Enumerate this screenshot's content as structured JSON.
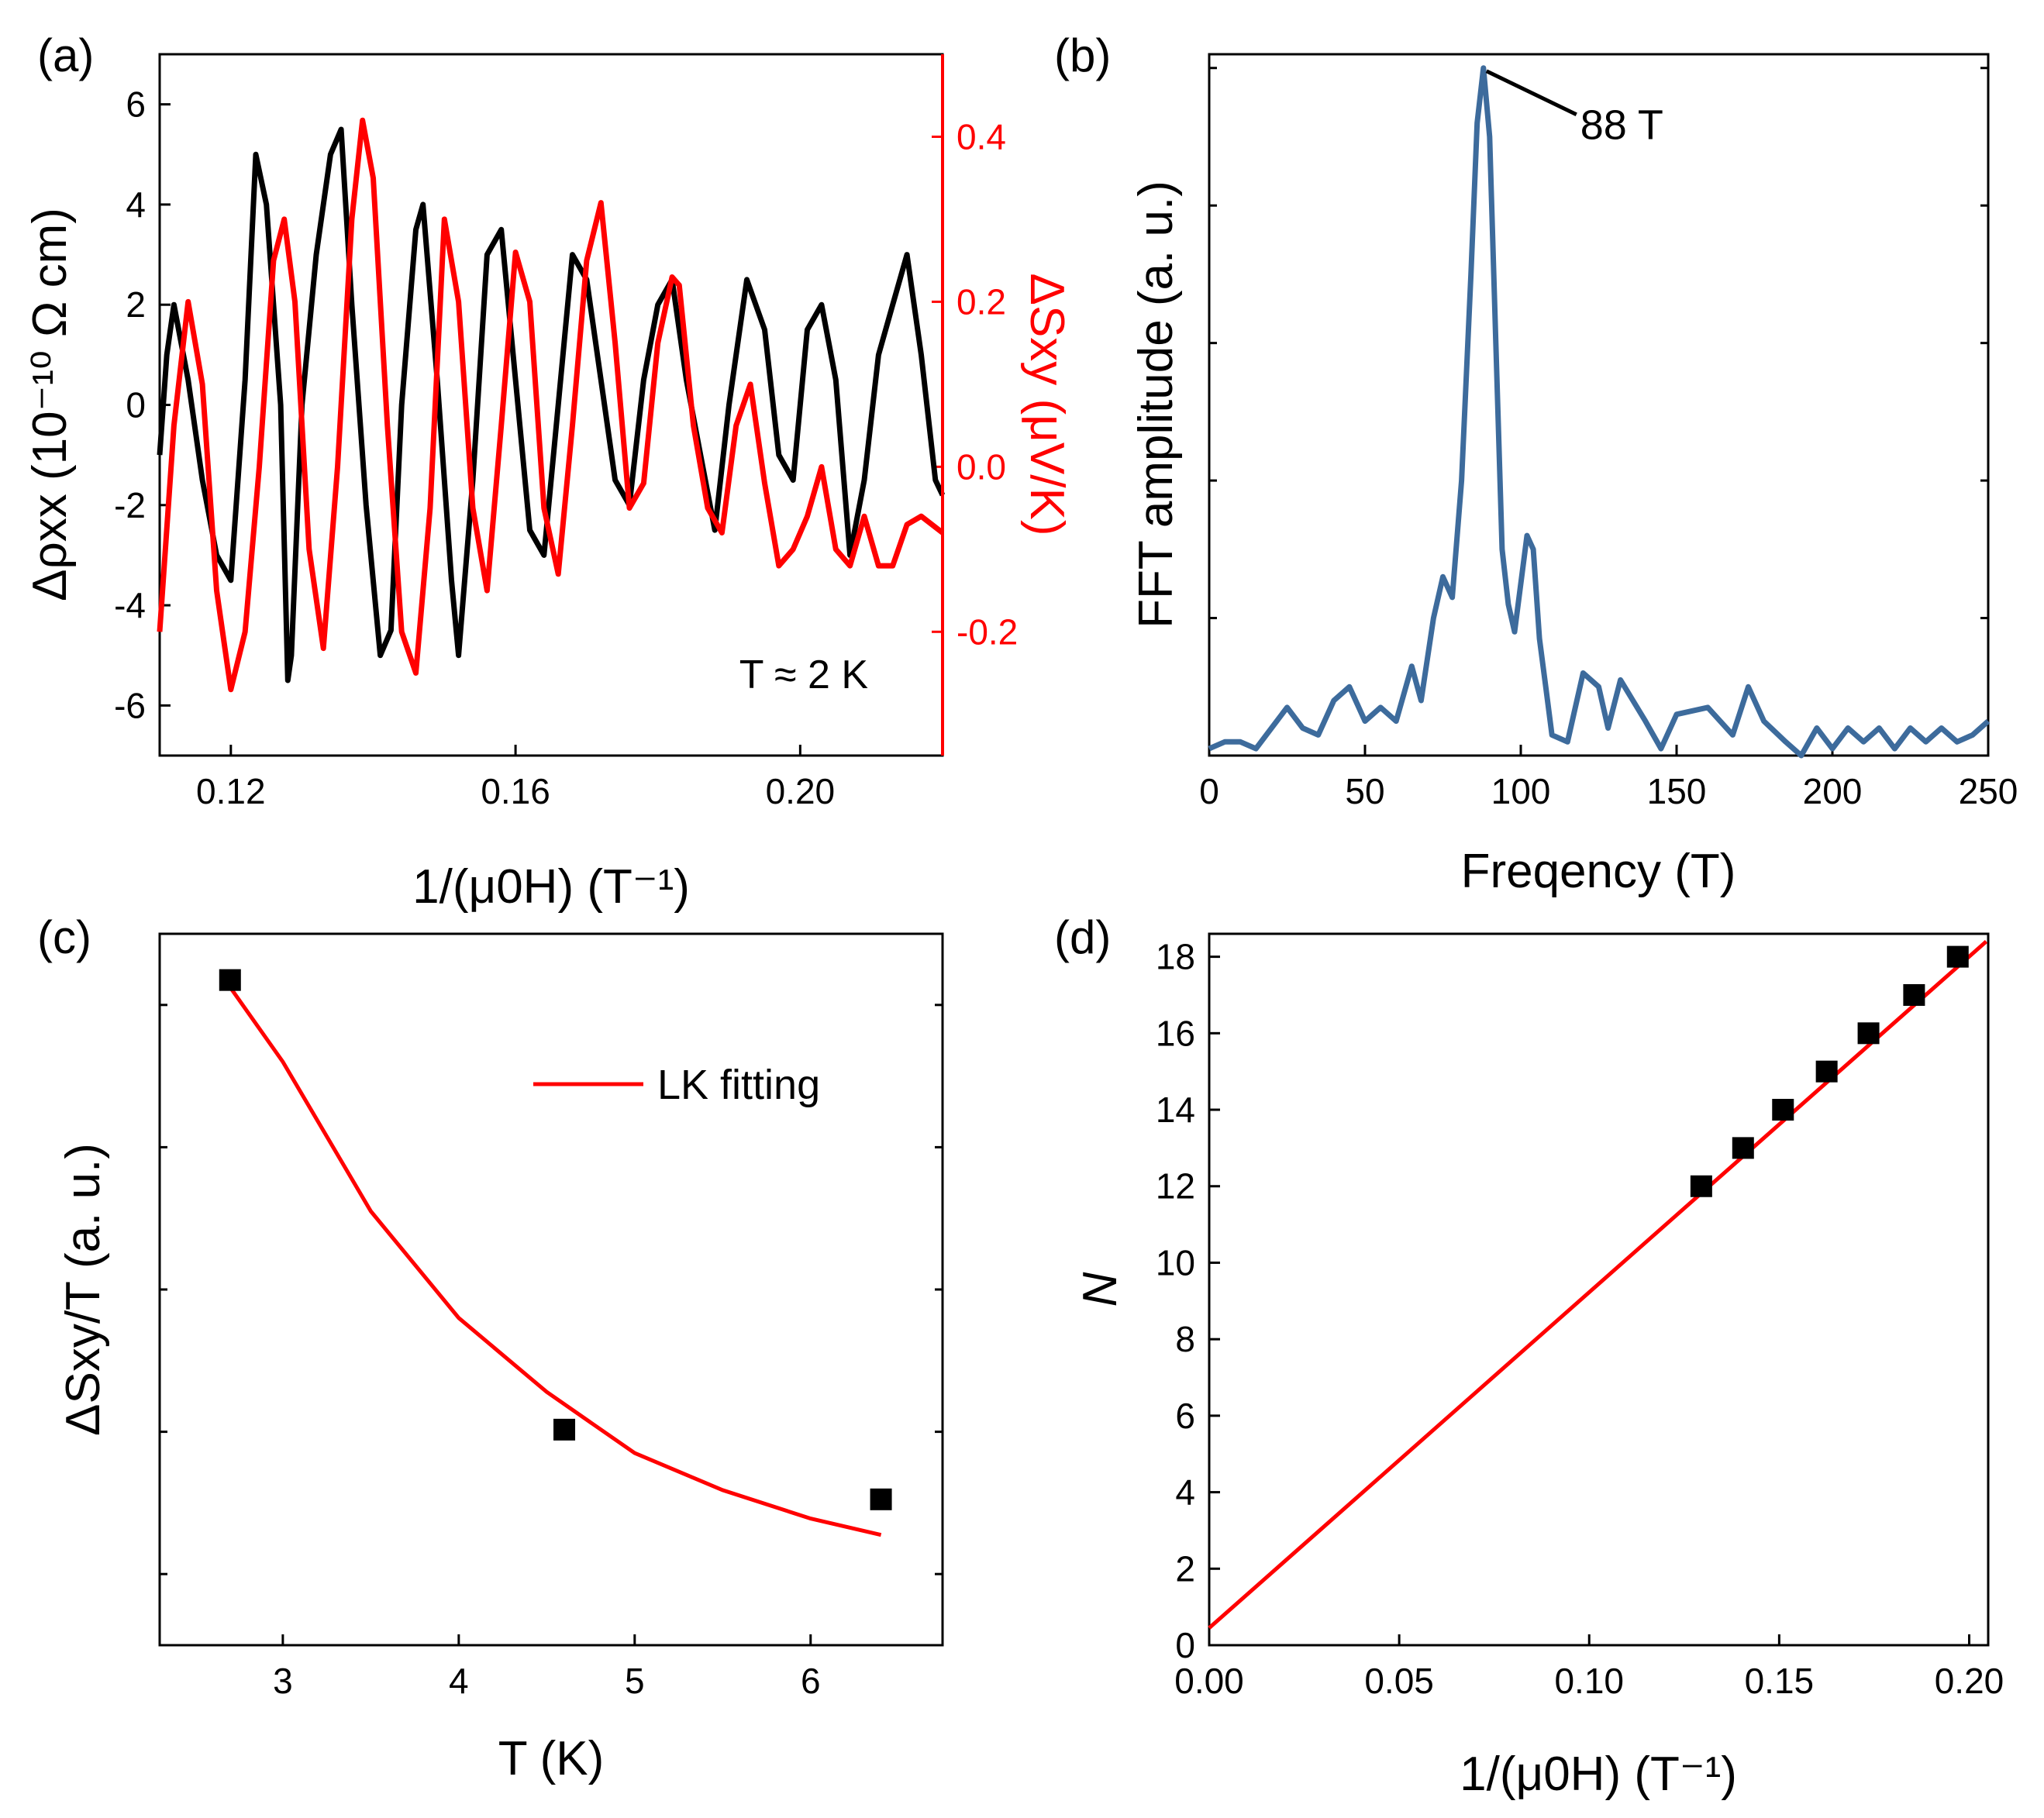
{
  "figure": {
    "background": "#ffffff"
  },
  "chart_data": [
    {
      "id": "a",
      "panel_label": "(a)",
      "type": "line",
      "xlabel": "1/(μ0H) (T⁻¹)",
      "ylabel_left": "Δρxx (10⁻¹⁰ Ω cm)",
      "ylabel_right": "ΔSxy (μV/K)",
      "annotation": "T ≈ 2 K",
      "xlim": [
        0.11,
        0.22
      ],
      "ylim_left": [
        -7,
        7
      ],
      "ylim_right": [
        -0.35,
        0.5
      ],
      "xticks": [
        "0.12",
        "0.16",
        "0.20"
      ],
      "xtick_values": [
        0.12,
        0.16,
        0.2
      ],
      "yticks_left": [
        "-6",
        "-4",
        "-2",
        "0",
        "2",
        "4",
        "6"
      ],
      "ytick_values_left": [
        -6,
        -4,
        -2,
        0,
        2,
        4,
        6
      ],
      "yticks_right": [
        "-0.2",
        "0.0",
        "0.2",
        "0.4"
      ],
      "ytick_values_right": [
        -0.2,
        0.0,
        0.2,
        0.4
      ],
      "right_axis_color": "#ff0000",
      "series": [
        {
          "name": "Δρxx",
          "axis": "left",
          "color": "#000000",
          "x": [
            0.11,
            0.111,
            0.112,
            0.114,
            0.116,
            0.118,
            0.12,
            0.122,
            0.1235,
            0.125,
            0.127,
            0.128,
            0.1285,
            0.13,
            0.132,
            0.134,
            0.1355,
            0.137,
            0.139,
            0.141,
            0.1425,
            0.144,
            0.146,
            0.147,
            0.149,
            0.151,
            0.152,
            0.154,
            0.156,
            0.158,
            0.16,
            0.162,
            0.164,
            0.166,
            0.168,
            0.17,
            0.172,
            0.174,
            0.176,
            0.178,
            0.18,
            0.182,
            0.184,
            0.186,
            0.188,
            0.19,
            0.1925,
            0.195,
            0.197,
            0.199,
            0.201,
            0.203,
            0.205,
            0.207,
            0.209,
            0.211,
            0.213,
            0.215,
            0.217,
            0.219,
            0.22
          ],
          "y": [
            -1.0,
            1.0,
            2.0,
            0.5,
            -1.5,
            -3.0,
            -3.5,
            0.5,
            5.0,
            4.0,
            0.0,
            -5.5,
            -5.0,
            0.0,
            3.0,
            5.0,
            5.5,
            2.0,
            -2.0,
            -5.0,
            -4.5,
            0.0,
            3.5,
            4.0,
            0.5,
            -3.5,
            -5.0,
            -1.5,
            3.0,
            3.5,
            0.5,
            -2.5,
            -3.0,
            0.0,
            3.0,
            2.5,
            0.5,
            -1.5,
            -2.0,
            0.5,
            2.0,
            2.5,
            0.5,
            -1.0,
            -2.5,
            0.0,
            2.5,
            1.5,
            -1.0,
            -1.5,
            1.5,
            2.0,
            0.5,
            -3.0,
            -1.5,
            1.0,
            2.0,
            3.0,
            1.0,
            -1.5,
            -1.8
          ]
        },
        {
          "name": "ΔSxy",
          "axis": "right",
          "color": "#ff0000",
          "x": [
            0.11,
            0.112,
            0.114,
            0.116,
            0.118,
            0.12,
            0.122,
            0.124,
            0.126,
            0.1275,
            0.129,
            0.131,
            0.133,
            0.135,
            0.137,
            0.1385,
            0.14,
            0.142,
            0.144,
            0.146,
            0.148,
            0.15,
            0.152,
            0.154,
            0.156,
            0.158,
            0.16,
            0.162,
            0.164,
            0.166,
            0.168,
            0.17,
            0.172,
            0.174,
            0.176,
            0.178,
            0.18,
            0.182,
            0.183,
            0.185,
            0.187,
            0.189,
            0.191,
            0.193,
            0.195,
            0.197,
            0.199,
            0.201,
            0.203,
            0.205,
            0.207,
            0.209,
            0.211,
            0.213,
            0.215,
            0.217,
            0.22
          ],
          "y": [
            -0.2,
            0.05,
            0.2,
            0.1,
            -0.15,
            -0.27,
            -0.2,
            0.0,
            0.25,
            0.3,
            0.2,
            -0.1,
            -0.22,
            0.0,
            0.3,
            0.42,
            0.35,
            0.05,
            -0.2,
            -0.25,
            -0.05,
            0.3,
            0.2,
            -0.05,
            -0.15,
            0.05,
            0.26,
            0.2,
            -0.05,
            -0.13,
            0.05,
            0.25,
            0.32,
            0.15,
            -0.05,
            -0.02,
            0.15,
            0.23,
            0.22,
            0.05,
            -0.05,
            -0.08,
            0.05,
            0.1,
            -0.02,
            -0.12,
            -0.1,
            -0.06,
            0.0,
            -0.1,
            -0.12,
            -0.06,
            -0.12,
            -0.12,
            -0.07,
            -0.06,
            -0.08
          ]
        }
      ]
    },
    {
      "id": "b",
      "panel_label": "(b)",
      "type": "line",
      "xlabel": "Freqency (T)",
      "ylabel": "FFT amplitude (a. u.)",
      "annotation": "88 T",
      "annotation_points_to": [
        88,
        1.0
      ],
      "xlim": [
        0,
        250
      ],
      "ylim": [
        0,
        1.02
      ],
      "xticks": [
        "0",
        "50",
        "100",
        "150",
        "200",
        "250"
      ],
      "xtick_values": [
        0,
        50,
        100,
        150,
        200,
        250
      ],
      "yticks": [],
      "minor_ytick_values": [
        0.2,
        0.4,
        0.6,
        0.8,
        1.0
      ],
      "series": [
        {
          "name": "FFT amplitude",
          "color": "#3d6b9c",
          "x": [
            0,
            5,
            10,
            15,
            20,
            25,
            30,
            35,
            40,
            45,
            50,
            55,
            60,
            65,
            68,
            72,
            75,
            78,
            81,
            84,
            86,
            88,
            90,
            92,
            94,
            96,
            98,
            100,
            102,
            104,
            106,
            108,
            110,
            115,
            120,
            125,
            128,
            132,
            136,
            140,
            145,
            150,
            160,
            168,
            173,
            178,
            185,
            190,
            195,
            200,
            205,
            210,
            215,
            220,
            225,
            230,
            235,
            240,
            245,
            250
          ],
          "y": [
            0.01,
            0.02,
            0.02,
            0.01,
            0.04,
            0.07,
            0.04,
            0.03,
            0.08,
            0.1,
            0.05,
            0.07,
            0.05,
            0.13,
            0.08,
            0.2,
            0.26,
            0.23,
            0.4,
            0.7,
            0.92,
            1.0,
            0.9,
            0.6,
            0.3,
            0.22,
            0.18,
            0.25,
            0.32,
            0.3,
            0.17,
            0.1,
            0.03,
            0.02,
            0.12,
            0.1,
            0.04,
            0.11,
            0.08,
            0.05,
            0.01,
            0.06,
            0.07,
            0.03,
            0.1,
            0.05,
            0.02,
            0.0,
            0.04,
            0.01,
            0.04,
            0.02,
            0.04,
            0.01,
            0.04,
            0.02,
            0.04,
            0.02,
            0.03,
            0.05
          ]
        }
      ]
    },
    {
      "id": "c",
      "panel_label": "(c)",
      "type": "scatter",
      "xlabel": "T (K)",
      "ylabel": "ΔSxy/T (a. u.)",
      "xlim": [
        2.3,
        6.75
      ],
      "ylim": [
        0,
        1
      ],
      "xticks": [
        "3",
        "4",
        "5",
        "6"
      ],
      "xtick_values": [
        3,
        4,
        5,
        6
      ],
      "yticks": [],
      "minor_ytick_values": [
        0.1,
        0.3,
        0.5,
        0.7,
        0.9
      ],
      "legend": {
        "position": "top-right",
        "entries": [
          "LK fitting"
        ]
      },
      "series": [
        {
          "name": "data",
          "marker": "square",
          "color": "#000000",
          "x": [
            2.7,
            4.6,
            6.4
          ],
          "y": [
            0.935,
            0.303,
            0.205
          ]
        },
        {
          "name": "LK fitting",
          "color": "#ff0000",
          "x": [
            2.7,
            3.0,
            3.5,
            4.0,
            4.5,
            5.0,
            5.5,
            6.0,
            6.4
          ],
          "y": [
            0.925,
            0.82,
            0.61,
            0.46,
            0.356,
            0.27,
            0.218,
            0.178,
            0.155
          ]
        }
      ]
    },
    {
      "id": "d",
      "panel_label": "(d)",
      "type": "scatter",
      "xlabel": "1/(μ0H) (T⁻¹)",
      "ylabel": "N",
      "xlim": [
        0,
        0.205
      ],
      "ylim": [
        0,
        18.6
      ],
      "xticks": [
        "0.00",
        "0.05",
        "0.10",
        "0.15",
        "0.20"
      ],
      "xtick_values": [
        0,
        0.05,
        0.1,
        0.15,
        0.2
      ],
      "yticks": [
        "0",
        "2",
        "4",
        "6",
        "8",
        "10",
        "12",
        "14",
        "16",
        "18"
      ],
      "ytick_values": [
        0,
        2,
        4,
        6,
        8,
        10,
        12,
        14,
        16,
        18
      ],
      "series": [
        {
          "name": "Landau index",
          "marker": "square",
          "color": "#000000",
          "x": [
            0.1295,
            0.1405,
            0.151,
            0.1625,
            0.1735,
            0.1855,
            0.197
          ],
          "y": [
            12,
            13,
            14,
            15,
            16,
            17,
            18
          ]
        },
        {
          "name": "linear fit",
          "color": "#ff0000",
          "x": [
            0,
            0.2045
          ],
          "y": [
            0.45,
            18.4
          ]
        }
      ]
    }
  ]
}
